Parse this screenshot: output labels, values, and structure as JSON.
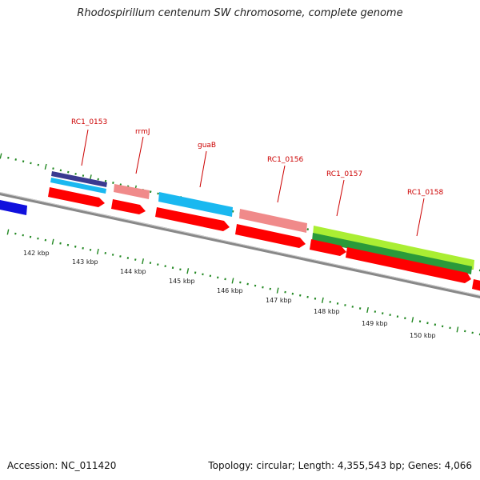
{
  "title": "Rhodospirillum centenum SW chromosome, complete genome",
  "footer": {
    "accession": "Accession: NC_011420",
    "topology": "Topology: circular; Length: 4,355,543 bp; Genes: 4,066"
  },
  "colors": {
    "cds_forward": "#ff0000",
    "cds_reverse": "#ff0000",
    "salmon": "#f08a8a",
    "cyan": "#1ab8f0",
    "navy": "#3a3a90",
    "lime": "#aaee33",
    "green": "#2a9a3a",
    "blue": "#1010dd",
    "tick": "#228822",
    "backbone": "#888888",
    "label": "#cc0000"
  },
  "gene_labels": [
    {
      "name": "RC1_0153"
    },
    {
      "name": "rrmJ"
    },
    {
      "name": "guaB"
    },
    {
      "name": "RC1_0156"
    },
    {
      "name": "RC1_0157"
    },
    {
      "name": "RC1_0158"
    }
  ],
  "kbp_ticks": [
    "142 kbp",
    "143 kbp",
    "144 kbp",
    "145 kbp",
    "146 kbp",
    "147 kbp",
    "148 kbp",
    "149 kbp",
    "150 kbp"
  ]
}
